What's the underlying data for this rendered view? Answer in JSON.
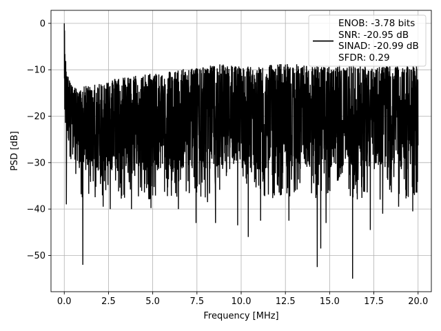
{
  "chart_data": {
    "type": "line",
    "xlabel": "Frequency [MHz]",
    "ylabel": "PSD [dB]",
    "xlim": [
      -0.75,
      20.75
    ],
    "ylim": [
      -57.8,
      2.8
    ],
    "xticks": [
      0.0,
      2.5,
      5.0,
      7.5,
      10.0,
      12.5,
      15.0,
      17.5,
      20.0
    ],
    "xtick_labels": [
      "0.0",
      "2.5",
      "5.0",
      "7.5",
      "10.0",
      "12.5",
      "15.0",
      "17.5",
      "20.0"
    ],
    "yticks": [
      0,
      -10,
      -20,
      -30,
      -40,
      -50
    ],
    "ytick_labels": [
      "0",
      "−10",
      "−20",
      "−30",
      "−40",
      "−50"
    ],
    "grid": true,
    "line_color": "#000000",
    "legend": {
      "placement": "top-right",
      "entries": [
        "ENOB: -3.78 bits",
        "SNR: -20.95 dB",
        "SINAD: -20.99 dB",
        "SFDR: 0.29"
      ]
    },
    "series": [
      {
        "description": "dense noise-like PSD; envelope values (dB) sampled along frequency",
        "x": [
          0.0,
          0.05,
          0.1,
          0.2,
          0.4,
          0.6,
          0.8,
          1.0,
          1.5,
          2.0,
          2.5,
          3.0,
          4.0,
          5.0,
          6.0,
          7.0,
          8.0,
          9.0,
          10.0,
          11.0,
          12.0,
          13.0,
          14.0,
          15.0,
          16.0,
          17.0,
          18.0,
          19.0,
          20.0
        ],
        "upper": [
          0.0,
          -6.0,
          -9.0,
          -11.0,
          -14.0,
          -14.5,
          -15.0,
          -14.5,
          -14.0,
          -13.5,
          -13.0,
          -12.5,
          -12.0,
          -11.5,
          -11.0,
          -10.5,
          -10.0,
          -9.5,
          -10.0,
          -10.0,
          -9.5,
          -9.5,
          -10.0,
          -10.0,
          -9.5,
          -10.0,
          -10.0,
          -10.0,
          -10.0
        ],
        "lower": [
          -22.0,
          -25.0,
          -28.0,
          -30.0,
          -33.0,
          -35.0,
          -36.0,
          -38.0,
          -37.0,
          -38.0,
          -38.0,
          -38.0,
          -38.0,
          -38.0,
          -38.0,
          -38.0,
          -38.0,
          -38.0,
          -38.0,
          -38.0,
          -38.0,
          -38.0,
          -38.0,
          -38.0,
          -38.0,
          -38.0,
          -38.0,
          -38.0,
          -38.0
        ],
        "dips": [
          {
            "x": 0.12,
            "y": -39.0
          },
          {
            "x": 1.05,
            "y": -52.0
          },
          {
            "x": 2.2,
            "y": -39.5
          },
          {
            "x": 2.6,
            "y": -40.0
          },
          {
            "x": 3.8,
            "y": -40.0
          },
          {
            "x": 4.9,
            "y": -39.8
          },
          {
            "x": 6.45,
            "y": -40.0
          },
          {
            "x": 7.45,
            "y": -43.0
          },
          {
            "x": 8.1,
            "y": -38.5
          },
          {
            "x": 8.55,
            "y": -43.0
          },
          {
            "x": 9.8,
            "y": -43.5
          },
          {
            "x": 10.4,
            "y": -46.0
          },
          {
            "x": 11.1,
            "y": -42.5
          },
          {
            "x": 12.7,
            "y": -42.5
          },
          {
            "x": 14.3,
            "y": -52.5
          },
          {
            "x": 14.5,
            "y": -48.5
          },
          {
            "x": 14.8,
            "y": -43.0
          },
          {
            "x": 16.3,
            "y": -55.0
          },
          {
            "x": 17.3,
            "y": -44.5
          },
          {
            "x": 18.0,
            "y": -41.0
          },
          {
            "x": 18.9,
            "y": -39.5
          },
          {
            "x": 19.7,
            "y": -40.5
          }
        ]
      }
    ]
  }
}
